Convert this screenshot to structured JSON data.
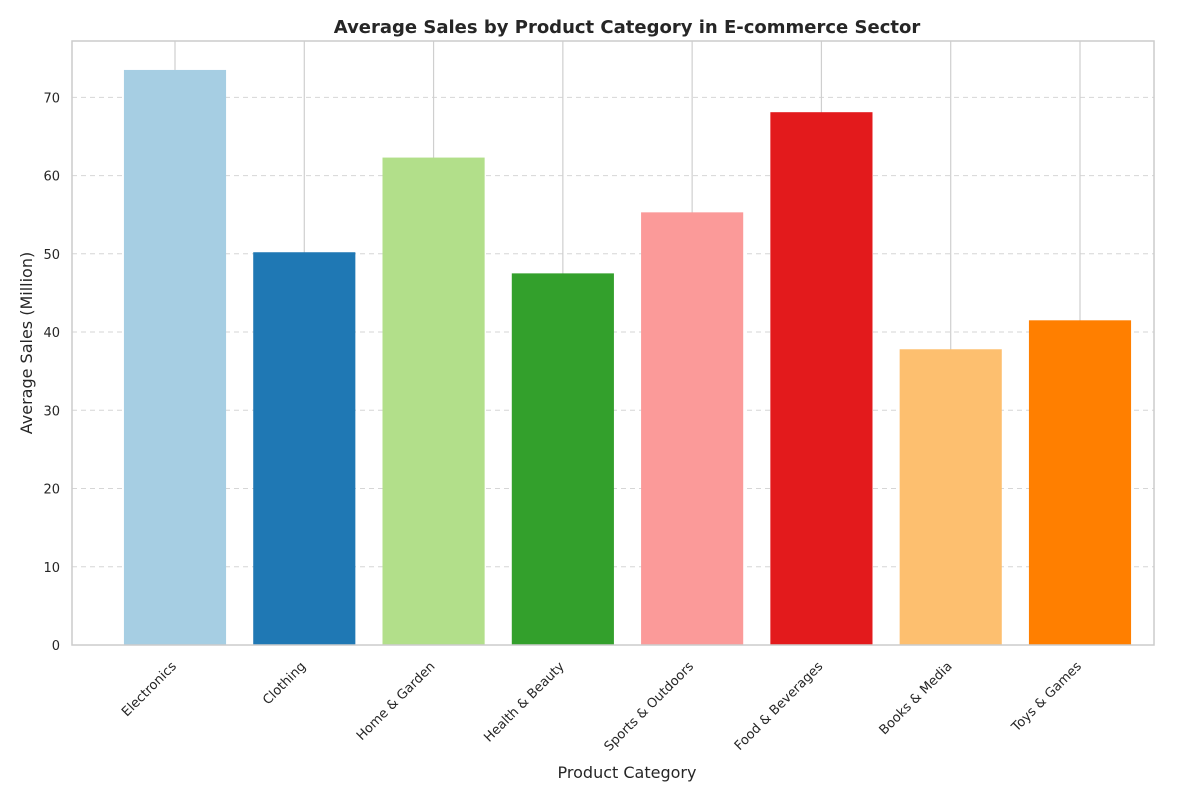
{
  "chart_data": {
    "type": "bar",
    "title": "Average Sales by Product Category in E-commerce Sector",
    "xlabel": "Product Category",
    "ylabel": "Average Sales (Million)",
    "categories": [
      "Electronics",
      "Clothing",
      "Home & Garden",
      "Health & Beauty",
      "Sports & Outdoors",
      "Food & Beverages",
      "Books & Media",
      "Toys & Games"
    ],
    "values": [
      73.5,
      50.2,
      62.3,
      47.5,
      55.3,
      68.1,
      37.8,
      41.5
    ],
    "colors": [
      "#a6cee3",
      "#1f78b4",
      "#b2df8a",
      "#33a02c",
      "#fb9a99",
      "#e31a1c",
      "#fdbf6f",
      "#ff7f00"
    ],
    "ylim": [
      0,
      77.2
    ],
    "yticks": [
      0,
      10,
      20,
      30,
      40,
      50,
      60,
      70
    ],
    "grid": "y-dashed",
    "legend": "none"
  }
}
